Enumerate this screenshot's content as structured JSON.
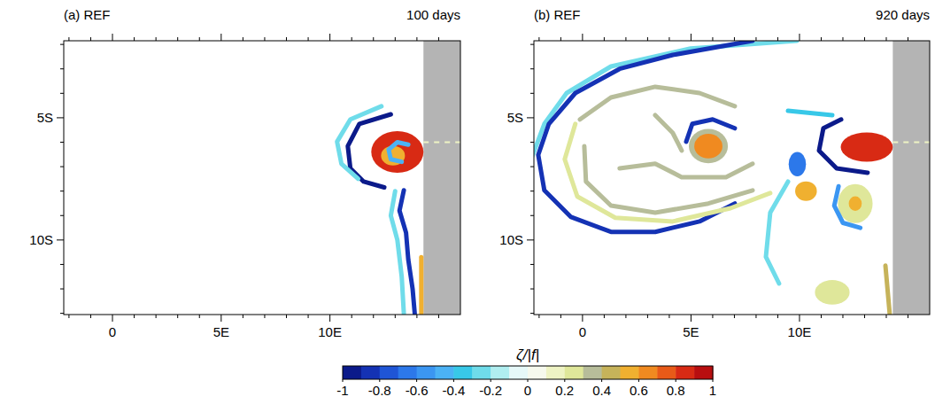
{
  "chart_data": [
    {
      "type": "vorticity_map",
      "title": "(a) REF",
      "subtitle": "100 days",
      "xlim": [
        -2.24,
        16
      ],
      "ylim": [
        -13.05,
        -1.85
      ],
      "xticks": [
        0,
        {
          "value": 5,
          "label": "5E"
        },
        {
          "value": 10,
          "label": "10E"
        }
      ],
      "yticks": [
        {
          "value": -5,
          "label": "5S"
        },
        {
          "value": -10,
          "label": "10S"
        }
      ],
      "xticks_minor": [
        -2,
        -1,
        1,
        2,
        3,
        4,
        6,
        7,
        8,
        9,
        11,
        12,
        13,
        14,
        15
      ],
      "yticks_minor": [
        -2,
        -3,
        -4,
        -6,
        -7,
        -8,
        -9,
        -11,
        -12,
        -13
      ],
      "land_xlim": [
        14.3,
        16
      ],
      "features": [
        {
          "type": "ellipse",
          "x": 13.1,
          "y": -6.4,
          "x_radius": 1.2,
          "y_radius": 0.85,
          "value": 0.85
        },
        {
          "type": "ellipse",
          "x": 12.9,
          "y": -6.55,
          "x_radius": 0.55,
          "y_radius": 0.4,
          "value": 0.55
        },
        {
          "type": "line",
          "x": [
            13.6,
            13.1,
            12.7,
            12.8,
            13.3
          ],
          "y": [
            -6.1,
            -6.0,
            -6.3,
            -6.7,
            -6.8
          ],
          "value": -0.5
        },
        {
          "type": "line",
          "x": [
            12.8,
            11.35,
            10.82,
            10.94,
            11.55,
            12.5
          ],
          "y": [
            -4.86,
            -5.25,
            -6.16,
            -7.07,
            -7.61,
            -7.85
          ],
          "value": -0.9
        },
        {
          "type": "line",
          "x": [
            12.37,
            10.94,
            10.33,
            10.53,
            11.3
          ],
          "y": [
            -4.53,
            -5.07,
            -5.98,
            -6.88,
            -7.5
          ],
          "value": -0.3
        },
        {
          "type": "line",
          "x": [
            13.4,
            13.2,
            13.5,
            13.6,
            13.8,
            13.9
          ],
          "y": [
            -7.97,
            -8.8,
            -9.7,
            -10.8,
            -12.0,
            -13.0
          ],
          "value": -0.8
        },
        {
          "type": "line",
          "x": [
            13.0,
            12.8,
            13.1,
            13.3,
            13.4
          ],
          "y": [
            -8.0,
            -9.0,
            -10.0,
            -11.5,
            -13.0
          ],
          "value": -0.3
        },
        {
          "type": "line",
          "x": [
            14.2,
            14.2
          ],
          "y": [
            -10.7,
            -13.0
          ],
          "value": 0.5
        },
        {
          "type": "line",
          "x": [
            14.3,
            16
          ],
          "y": [
            -6.0,
            -6.0
          ],
          "value": 0.15,
          "line_style": "dashed"
        }
      ]
    },
    {
      "type": "vorticity_map",
      "title": "(b) REF",
      "subtitle": "920 days",
      "xlim": [
        -2.24,
        16
      ],
      "ylim": [
        -13.05,
        -1.85
      ],
      "xticks": [
        0,
        {
          "value": 5,
          "label": "5E"
        },
        {
          "value": 10,
          "label": "10E"
        }
      ],
      "yticks": [
        {
          "value": -5,
          "label": "5S"
        },
        {
          "value": -10,
          "label": "10S"
        }
      ],
      "xticks_minor": [
        -2,
        -1,
        1,
        2,
        3,
        4,
        6,
        7,
        8,
        9,
        11,
        12,
        13,
        14,
        15
      ],
      "yticks_minor": [
        -2,
        -3,
        -4,
        -6,
        -7,
        -8,
        -9,
        -11,
        -12,
        -13
      ],
      "land_xlim": [
        14.3,
        16
      ],
      "features": [
        {
          "type": "line",
          "x": [
            9.88,
            4.98,
            1.31,
            -0.73,
            -1.76,
            -2.37
          ],
          "y": [
            -1.85,
            -2.17,
            -2.9,
            -3.99,
            -5.25,
            -6.7
          ],
          "value": -0.3
        },
        {
          "type": "line",
          "x": [
            7.84,
            4.16,
            1.71,
            -0.33,
            -1.55,
            -2.04,
            -1.76,
            -0.53,
            1.31,
            3.35,
            5.39,
            7.02
          ],
          "y": [
            -1.85,
            -2.43,
            -3.0,
            -3.99,
            -5.25,
            -6.52,
            -7.97,
            -9.06,
            -9.67,
            -9.67,
            -9.24,
            -8.51
          ],
          "value": -0.85
        },
        {
          "type": "line",
          "x": [
            -0.33,
            -0.82,
            -0.24,
            1.51,
            4.16,
            6.82,
            8.65
          ],
          "y": [
            -5.25,
            -6.7,
            -8.22,
            -9.09,
            -9.24,
            -8.7,
            -8.08
          ],
          "value": 0.25
        },
        {
          "type": "line",
          "x": [
            0.08,
            0.16,
            1.31,
            3.35,
            5.8,
            7.84
          ],
          "y": [
            -6.16,
            -7.61,
            -8.59,
            -8.88,
            -8.51,
            -7.97
          ],
          "value": 0.35
        },
        {
          "type": "line",
          "x": [
            -0.12,
            1.31,
            3.35,
            5.39,
            7.02
          ],
          "y": [
            -5.07,
            -4.17,
            -3.73,
            -3.99,
            -4.53
          ],
          "value": 0.35
        },
        {
          "type": "line",
          "x": [
            1.71,
            3.35,
            4.57,
            6.61,
            7.84
          ],
          "y": [
            -7.07,
            -6.88,
            -7.43,
            -7.43,
            -6.88
          ],
          "value": 0.35
        },
        {
          "type": "line",
          "x": [
            3.35,
            4.16,
            4.57
          ],
          "y": [
            -4.89,
            -5.62,
            -6.34
          ],
          "value": 0.3
        },
        {
          "type": "line",
          "x": [
            9.47,
            11.51
          ],
          "y": [
            -4.71,
            -4.89
          ],
          "value": -0.4
        },
        {
          "type": "ellipse",
          "x": 5.8,
          "y": -6.16,
          "x_radius": 0.9,
          "y_radius": 0.7,
          "value": 0.3
        },
        {
          "type": "ellipse",
          "x": 5.8,
          "y": -6.16,
          "x_radius": 0.65,
          "y_radius": 0.5,
          "value": 0.6
        },
        {
          "type": "line",
          "x": [
            4.78,
            5.06,
            6.0,
            7.02
          ],
          "y": [
            -5.98,
            -5.25,
            -5.07,
            -5.43
          ],
          "value": -0.8
        },
        {
          "type": "line",
          "x": [
            9.47,
            8.65,
            8.45,
            9.06
          ],
          "y": [
            -7.61,
            -8.88,
            -10.69,
            -11.78
          ],
          "value": -0.3
        },
        {
          "type": "ellipse",
          "x": 9.9,
          "y": -6.9,
          "x_radius": 0.4,
          "y_radius": 0.5,
          "value": -0.7
        },
        {
          "type": "ellipse",
          "x": 10.3,
          "y": -8.0,
          "x_radius": 0.5,
          "y_radius": 0.4,
          "value": 0.5
        },
        {
          "type": "ellipse",
          "x": 12.57,
          "y": -8.51,
          "x_radius": 0.8,
          "y_radius": 0.8,
          "value": 0.25
        },
        {
          "type": "ellipse",
          "x": 12.57,
          "y": -8.51,
          "x_radius": 0.3,
          "y_radius": 0.3,
          "value": 0.5
        },
        {
          "type": "line",
          "x": [
            11.8,
            11.6,
            12.0,
            12.8
          ],
          "y": [
            -7.8,
            -8.6,
            -9.3,
            -9.5
          ],
          "value": -0.6
        },
        {
          "type": "ellipse",
          "x": 13.1,
          "y": -6.2,
          "x_radius": 1.2,
          "y_radius": 0.6,
          "value": 0.85
        },
        {
          "type": "line",
          "x": [
            11.92,
            11.1,
            10.9,
            11.71,
            13.14
          ],
          "y": [
            -5.07,
            -5.43,
            -6.34,
            -7.07,
            -7.25
          ],
          "value": -0.9
        },
        {
          "type": "ellipse",
          "x": 11.51,
          "y": -12.14,
          "x_radius": 0.8,
          "y_radius": 0.5,
          "value": 0.25
        },
        {
          "type": "line",
          "x": [
            13.96,
            14.16
          ],
          "y": [
            -11.05,
            -13.04
          ],
          "value": 0.4
        },
        {
          "type": "line",
          "x": [
            14.3,
            16
          ],
          "y": [
            -6.0,
            -6.0
          ],
          "value": 0.15,
          "line_style": "dashed"
        }
      ]
    }
  ],
  "colorbar": {
    "label": "ζ/|f|",
    "range": [
      -1,
      1
    ],
    "ticks": [
      -1,
      -0.8,
      -0.6,
      -0.4,
      -0.2,
      0,
      0.2,
      0.4,
      0.6,
      0.8,
      1
    ]
  }
}
